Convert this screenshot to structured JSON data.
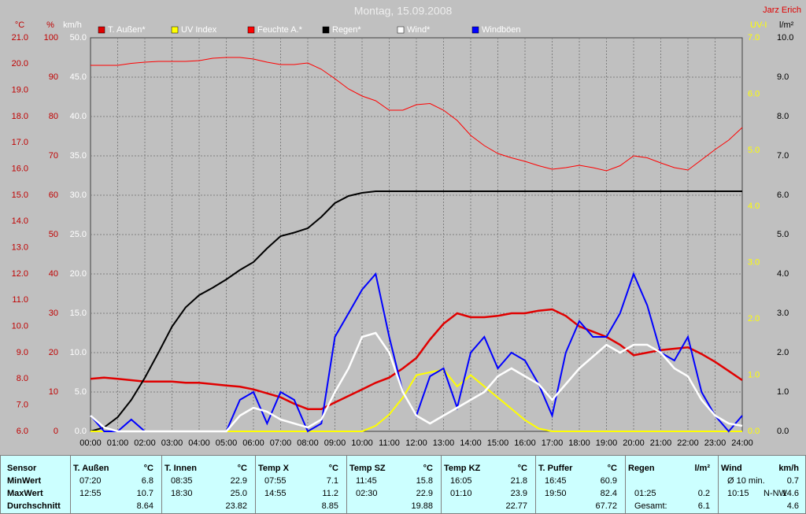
{
  "chart_data": {
    "type": "line",
    "title": "Montag, 15.09.2008",
    "author": "Jarz Erich",
    "x": [
      0,
      0.5,
      1,
      1.5,
      2,
      2.5,
      3,
      3.5,
      4,
      4.5,
      5,
      5.5,
      6,
      6.5,
      7,
      7.5,
      8,
      8.5,
      9,
      9.5,
      10,
      10.5,
      11,
      11.5,
      12,
      12.5,
      13,
      13.5,
      14,
      14.5,
      15,
      15.5,
      16,
      16.5,
      17,
      17.5,
      18,
      18.5,
      19,
      19.5,
      20,
      20.5,
      21,
      21.5,
      22,
      22.5,
      23,
      23.5,
      24
    ],
    "xlim": [
      0,
      24
    ],
    "xticks": [
      {
        "value": 0,
        "label": "00:00"
      },
      {
        "value": 1,
        "label": "01:00"
      },
      {
        "value": 2,
        "label": "02:00"
      },
      {
        "value": 3,
        "label": "03:00"
      },
      {
        "value": 4,
        "label": "04:00"
      },
      {
        "value": 5,
        "label": "05:00"
      },
      {
        "value": 6,
        "label": "06:00"
      },
      {
        "value": 7,
        "label": "07:00"
      },
      {
        "value": 8,
        "label": "08:00"
      },
      {
        "value": 9,
        "label": "09:00"
      },
      {
        "value": 10,
        "label": "10:00"
      },
      {
        "value": 11,
        "label": "11:00"
      },
      {
        "value": 12,
        "label": "12:00"
      },
      {
        "value": 13,
        "label": "13:00"
      },
      {
        "value": 14,
        "label": "14:00"
      },
      {
        "value": 15,
        "label": "15:00"
      },
      {
        "value": 16,
        "label": "16:00"
      },
      {
        "value": 17,
        "label": "17:00"
      },
      {
        "value": 18,
        "label": "18:00"
      },
      {
        "value": 19,
        "label": "19:00"
      },
      {
        "value": 20,
        "label": "20:00"
      },
      {
        "value": 21,
        "label": "21:00"
      },
      {
        "value": 22,
        "label": "22:00"
      },
      {
        "value": 23,
        "label": "23:00"
      },
      {
        "value": 24,
        "label": "24:00"
      }
    ],
    "grid": true,
    "axes": [
      {
        "label": "°C",
        "color": "#c00000",
        "lim": [
          6,
          21
        ],
        "ticks": [
          {
            "value": 6,
            "label": "6.0"
          },
          {
            "value": 7,
            "label": "7.0"
          },
          {
            "value": 8,
            "label": "8.0"
          },
          {
            "value": 9,
            "label": "9.0"
          },
          {
            "value": 10,
            "label": "10.0"
          },
          {
            "value": 11,
            "label": "11.0"
          },
          {
            "value": 12,
            "label": "12.0"
          },
          {
            "value": 13,
            "label": "13.0"
          },
          {
            "value": 14,
            "label": "14.0"
          },
          {
            "value": 15,
            "label": "15.0"
          },
          {
            "value": 16,
            "label": "16.0"
          },
          {
            "value": 17,
            "label": "17.0"
          },
          {
            "value": 18,
            "label": "18.0"
          },
          {
            "value": 19,
            "label": "19.0"
          },
          {
            "value": 20,
            "label": "20.0"
          },
          {
            "value": 21,
            "label": "21.0"
          }
        ]
      },
      {
        "label": "%",
        "color": "#c00000",
        "lim": [
          0,
          100
        ],
        "ticks": [
          0,
          10,
          20,
          30,
          40,
          50,
          60,
          70,
          80,
          90,
          100
        ]
      },
      {
        "label": "km/h",
        "color": "#ffffff",
        "lim": [
          0,
          50
        ],
        "grid": true,
        "ticks": [
          {
            "value": 0,
            "label": "0.0"
          },
          {
            "value": 5,
            "label": "5.0"
          },
          {
            "value": 10,
            "label": "10.0"
          },
          {
            "value": 15,
            "label": "15.0"
          },
          {
            "value": 20,
            "label": "20.0"
          },
          {
            "value": 25,
            "label": "25.0"
          },
          {
            "value": 30,
            "label": "30.0"
          },
          {
            "value": 35,
            "label": "35.0"
          },
          {
            "value": 40,
            "label": "40.0"
          },
          {
            "value": 45,
            "label": "45.0"
          },
          {
            "value": 50,
            "label": "50.0"
          }
        ]
      },
      {
        "label": "UV-I",
        "color": "#ffff00",
        "lim": [
          0,
          7
        ],
        "ticks": [
          {
            "value": 0,
            "label": "0.0"
          },
          {
            "value": 1,
            "label": "1.0"
          },
          {
            "value": 2,
            "label": "2.0"
          },
          {
            "value": 3,
            "label": "3.0"
          },
          {
            "value": 4,
            "label": "4.0"
          },
          {
            "value": 5,
            "label": "5.0"
          },
          {
            "value": 6,
            "label": "6.0"
          },
          {
            "value": 7,
            "label": "7.0"
          }
        ]
      },
      {
        "label": "l/m²",
        "color": "#000000",
        "lim": [
          0,
          10
        ],
        "ticks": [
          {
            "value": 0,
            "label": "0.0"
          },
          {
            "value": 1,
            "label": "1.0"
          },
          {
            "value": 2,
            "label": "2.0"
          },
          {
            "value": 3,
            "label": "3.0"
          },
          {
            "value": 4,
            "label": "4.0"
          },
          {
            "value": 5,
            "label": "5.0"
          },
          {
            "value": 6,
            "label": "6.0"
          },
          {
            "value": 7,
            "label": "7.0"
          },
          {
            "value": 8,
            "label": "8.0"
          },
          {
            "value": 9,
            "label": "9.0"
          },
          {
            "value": 10,
            "label": "10.0"
          }
        ]
      }
    ],
    "series": [
      {
        "name": "T. Außen*",
        "color": "#e00000",
        "axis": 0,
        "width": 2.5,
        "values": [
          8.0,
          8.05,
          8.0,
          7.95,
          7.9,
          7.9,
          7.9,
          7.85,
          7.85,
          7.8,
          7.75,
          7.7,
          7.6,
          7.45,
          7.3,
          7.05,
          6.85,
          6.85,
          7.1,
          7.35,
          7.6,
          7.85,
          8.05,
          8.4,
          8.8,
          9.5,
          10.1,
          10.5,
          10.35,
          10.35,
          10.4,
          10.5,
          10.5,
          10.6,
          10.65,
          10.4,
          10.0,
          9.8,
          9.6,
          9.3,
          8.9,
          9.0,
          9.1,
          9.15,
          9.2,
          8.95,
          8.65,
          8.3,
          7.95
        ]
      },
      {
        "name": "UV Index",
        "color": "#ffff00",
        "axis": 3,
        "width": 2,
        "values": [
          0,
          0,
          0,
          0,
          0,
          0,
          0,
          0,
          0,
          0,
          0,
          0,
          0,
          0,
          0,
          0,
          0,
          0,
          0,
          0,
          0,
          0.1,
          0.3,
          0.6,
          1.0,
          1.05,
          1.1,
          0.8,
          1.0,
          0.8,
          0.6,
          0.4,
          0.2,
          0.05,
          0,
          0,
          0,
          0,
          0,
          0,
          0,
          0,
          0,
          0,
          0,
          0,
          0,
          0,
          0
        ]
      },
      {
        "name": "Feuchte A.*",
        "color": "#ff0000",
        "axis": 1,
        "width": 1,
        "values": [
          93,
          93,
          93,
          93.5,
          93.8,
          94,
          94,
          94,
          94.2,
          94.8,
          95,
          95,
          94.6,
          93.8,
          93.2,
          93.2,
          93.6,
          92,
          89.6,
          87,
          85.2,
          84,
          81.6,
          81.6,
          83,
          83.3,
          81.6,
          79,
          75.2,
          72.6,
          70.6,
          69.5,
          68.6,
          67.5,
          66.6,
          67,
          67.6,
          67,
          66.2,
          67.5,
          70,
          69.5,
          68.2,
          67,
          66.4,
          69,
          71.6,
          74,
          77.2
        ]
      },
      {
        "name": "Regen*",
        "color": "#000000",
        "axis": 4,
        "width": 2,
        "values": [
          0,
          0.1,
          0.36,
          0.8,
          1.36,
          2.0,
          2.66,
          3.15,
          3.46,
          3.65,
          3.86,
          4.1,
          4.3,
          4.65,
          4.96,
          5.05,
          5.16,
          5.45,
          5.8,
          5.98,
          6.06,
          6.1,
          6.1,
          6.1,
          6.1,
          6.1,
          6.1,
          6.1,
          6.1,
          6.1,
          6.1,
          6.1,
          6.1,
          6.1,
          6.1,
          6.1,
          6.1,
          6.1,
          6.1,
          6.1,
          6.1,
          6.1,
          6.1,
          6.1,
          6.1,
          6.1,
          6.1,
          6.1,
          6.1
        ]
      },
      {
        "name": "Wind*",
        "color": "#ffffff",
        "axis": 2,
        "width": 2.5,
        "values": [
          2,
          0.5,
          0,
          0,
          0,
          0,
          0,
          0,
          0,
          0,
          0,
          2,
          3,
          2.5,
          1.5,
          1,
          0.5,
          1.5,
          5,
          8,
          12,
          12.5,
          10,
          5,
          2,
          1,
          2,
          3,
          4,
          5,
          7,
          8,
          7,
          6,
          4,
          6,
          8,
          9.5,
          11,
          10,
          11,
          11,
          10,
          8,
          7,
          4,
          2,
          1,
          0.7
        ]
      },
      {
        "name": "Windböen",
        "color": "#0000ff",
        "axis": 2,
        "width": 2,
        "values": [
          2,
          0,
          0,
          1.5,
          0,
          0,
          0,
          0,
          0,
          0,
          0,
          4,
          5,
          1,
          5,
          4,
          0,
          1,
          12,
          15,
          18,
          20,
          12,
          5,
          2,
          7,
          8,
          3,
          10,
          12,
          8,
          10,
          9,
          6,
          2,
          10,
          14,
          12,
          12,
          15,
          20,
          16,
          10,
          9,
          12,
          5,
          2,
          0,
          2
        ]
      }
    ]
  },
  "table": {
    "sensor_labels": [
      "Sensor",
      "MinWert",
      "MaxWert",
      "Durchschnitt"
    ],
    "columns": [
      {
        "name": "T. Außen",
        "unit": "°C",
        "cells": [
          {
            "time": "07:20",
            "value": "6.8"
          },
          {
            "time": "12:55",
            "value": "10.7"
          },
          {
            "value": "8.64"
          }
        ]
      },
      {
        "name": "T. Innen",
        "unit": "°C",
        "cells": [
          {
            "time": "08:35",
            "value": "22.9"
          },
          {
            "time": "18:30",
            "value": "25.0"
          },
          {
            "value": "23.82"
          }
        ]
      },
      {
        "name": "Temp X",
        "unit": "°C",
        "cells": [
          {
            "time": "07:55",
            "value": "7.1"
          },
          {
            "time": "14:55",
            "value": "11.2"
          },
          {
            "value": "8.85"
          }
        ]
      },
      {
        "name": "Temp SZ",
        "unit": "°C",
        "cells": [
          {
            "time": "11:45",
            "value": "15.8"
          },
          {
            "time": "02:30",
            "value": "22.9"
          },
          {
            "value": "19.88"
          }
        ]
      },
      {
        "name": "Temp KZ",
        "unit": "°C",
        "cells": [
          {
            "time": "16:05",
            "value": "21.8"
          },
          {
            "time": "01:10",
            "value": "23.9"
          },
          {
            "value": "22.77"
          }
        ]
      },
      {
        "name": "T. Puffer",
        "unit": "°C",
        "cells": [
          {
            "time": "16:45",
            "value": "60.9"
          },
          {
            "time": "19:50",
            "value": "82.4"
          },
          {
            "value": "67.72"
          }
        ]
      },
      {
        "name": "Regen",
        "unit": "l/m²",
        "cells": [
          null,
          {
            "time": "01:25",
            "value": "0.2"
          },
          {
            "time": "Gesamt:",
            "value": "6.1"
          }
        ]
      },
      {
        "name": "Wind",
        "unit": "km/h",
        "cells": [
          {
            "time": "Ø 10 min.",
            "value": "0.7"
          },
          {
            "time": "10:15",
            "extra": "N-NW",
            "value": "14.6"
          },
          {
            "value": "4.6"
          }
        ]
      }
    ]
  }
}
